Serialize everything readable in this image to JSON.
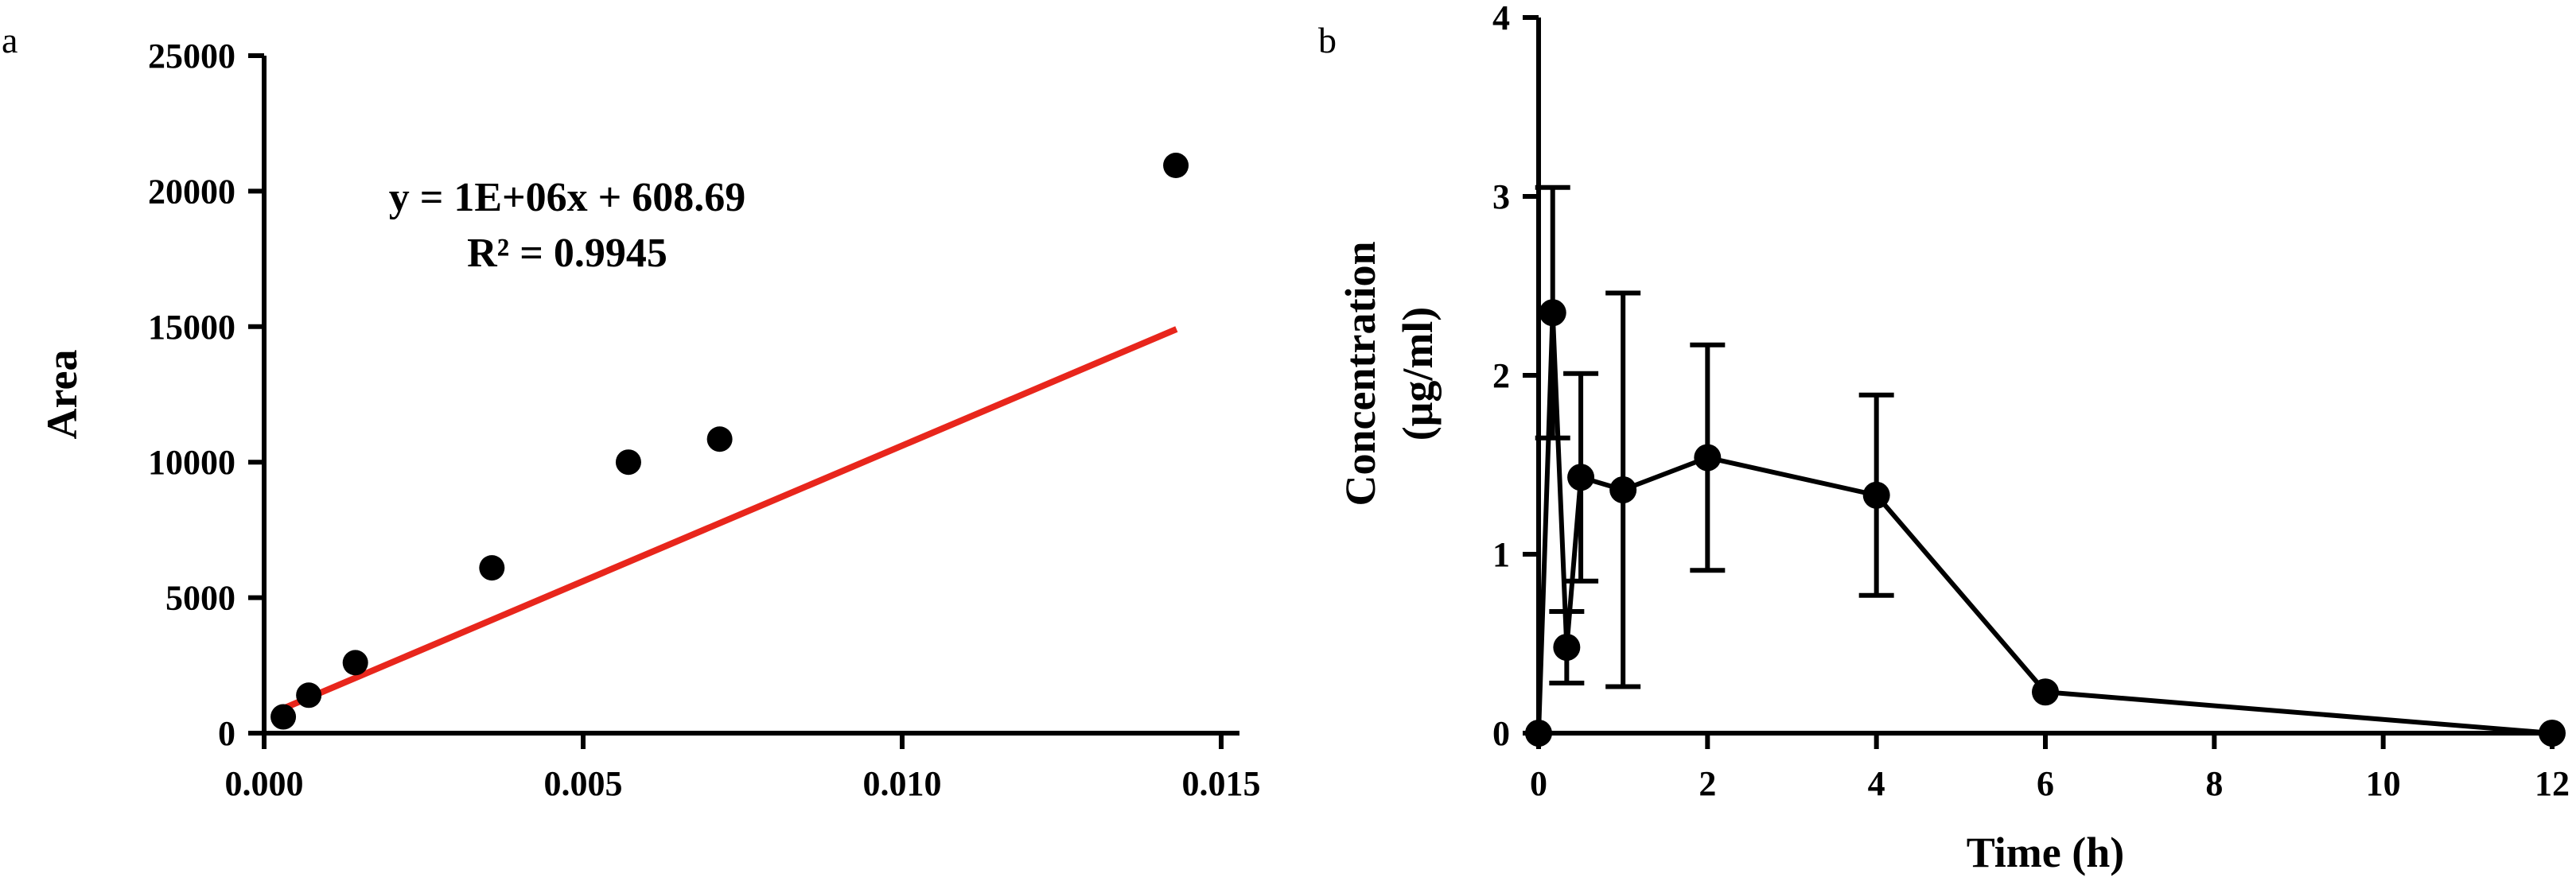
{
  "figure": {
    "panels": [
      "a",
      "b"
    ]
  },
  "chart_data": [
    {
      "panel": "a",
      "type": "scatter",
      "title": "",
      "xlabel": "",
      "ylabel": "Area",
      "xlim": [
        0,
        0.015
      ],
      "ylim": [
        0,
        25000
      ],
      "x_ticks": [
        0.0,
        0.005,
        0.01,
        0.015
      ],
      "x_tick_labels": [
        "0.000",
        "0.005",
        "0.010",
        "0.015"
      ],
      "y_ticks": [
        0,
        5000,
        10000,
        15000,
        20000,
        25000
      ],
      "y_tick_labels": [
        "0",
        "5000",
        "10000",
        "15000",
        "20000",
        "25000"
      ],
      "grid": false,
      "series": [
        {
          "x": [
            0.0003,
            0.0007,
            0.00143,
            0.00357,
            0.00571,
            0.00714,
            0.01429
          ],
          "y": [
            600,
            1400,
            2600,
            6100,
            10000,
            10850,
            20950
          ],
          "color": "#000000"
        }
      ],
      "trendline": {
        "slope": 1000000,
        "intercept": 608.69,
        "x_range": [
          0.0002,
          0.0143
        ],
        "color": "#e8261c"
      },
      "annotations": [
        "y = 1E+06x + 608.69",
        "R² = 0.9945"
      ]
    },
    {
      "panel": "b",
      "type": "line",
      "title": "",
      "xlabel": "Time (h)",
      "ylabel": [
        "Concentration",
        "(μg/ml)"
      ],
      "xlim": [
        0,
        12
      ],
      "ylim": [
        0,
        4
      ],
      "x_ticks": [
        0,
        2,
        4,
        6,
        8,
        10,
        12
      ],
      "x_tick_labels": [
        "0",
        "2",
        "4",
        "6",
        "8",
        "10",
        "12"
      ],
      "y_ticks": [
        0,
        1,
        2,
        3,
        4
      ],
      "y_tick_labels": [
        "0",
        "1",
        "2",
        "3",
        "4"
      ],
      "grid": false,
      "series": [
        {
          "x": [
            0,
            0.167,
            0.333,
            0.5,
            1,
            2,
            4,
            6,
            12
          ],
          "y": [
            0,
            2.35,
            0.48,
            1.43,
            1.36,
            1.54,
            1.33,
            0.23,
            0
          ],
          "error": [
            0,
            0.7,
            0.2,
            0.58,
            1.1,
            0.63,
            0.56,
            0,
            0
          ],
          "color": "#000000"
        }
      ]
    }
  ]
}
